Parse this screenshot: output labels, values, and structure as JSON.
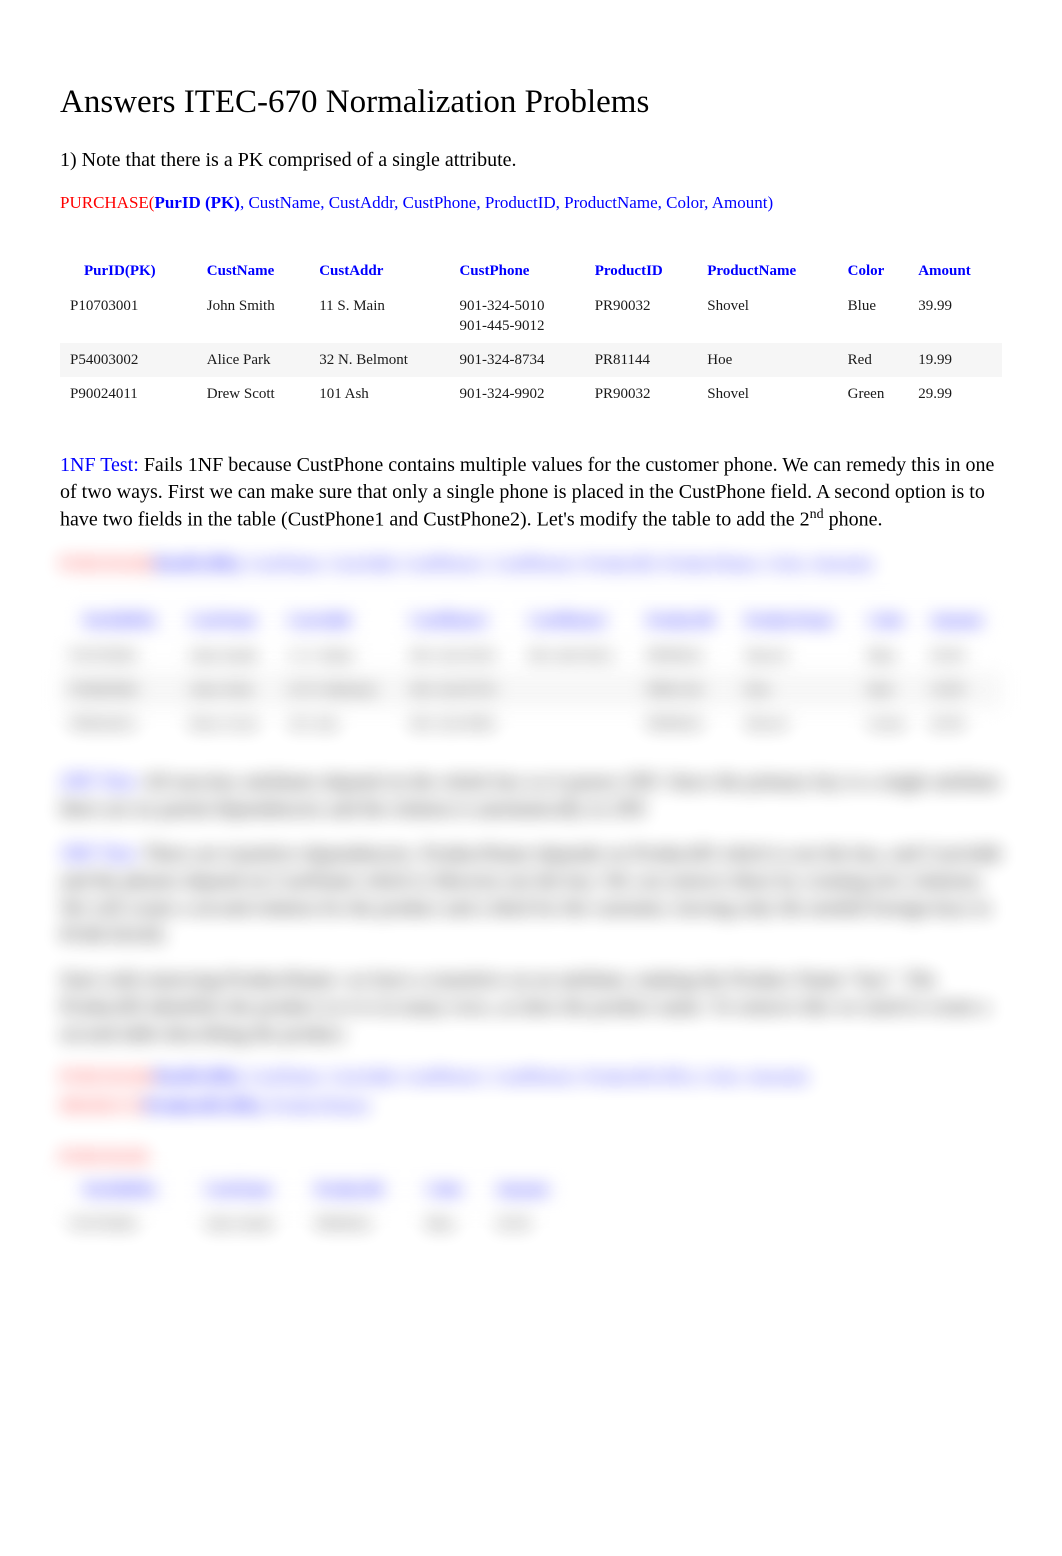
{
  "title": "Answers ITEC-670 Normalization Problems",
  "q1_note": "1) Note that there is a PK comprised of a single attribute.",
  "schema1": {
    "rel": "PURCHASE(",
    "pk": "PurID (PK)",
    "rest": ", CustName, CustAddr, CustPhone, ProductID, ProductName, Color, Amount)"
  },
  "table1": {
    "columns": [
      "PurID(PK)",
      "CustName",
      "CustAddr",
      "CustPhone",
      "ProductID",
      "ProductName",
      "Color",
      "Amount"
    ],
    "red_cols": [
      6,
      7
    ],
    "rows": [
      [
        "P10703001",
        "John Smith",
        "11 S. Main",
        "901-324-5010\n901-445-9012",
        "PR90032",
        "Shovel",
        "Blue",
        "39.99"
      ],
      [
        "P54003002",
        "Alice Park",
        "32 N. Belmont",
        "901-324-8734",
        "PR81144",
        "Hoe",
        "Red",
        "19.99"
      ],
      [
        "P90024011",
        "Drew Scott",
        "101 Ash",
        "901-324-9902",
        "PR90032",
        "Shovel",
        "Green",
        "29.99"
      ]
    ],
    "alt_rows": [
      1
    ]
  },
  "nf1_label": "1NF Test:",
  "nf1_text": " Fails 1NF because CustPhone contains multiple values for the customer phone. We can remedy this in one of two ways. First we can make sure that only a single phone is placed in the CustPhone field. A second option is to have two fields in the table (CustPhone1 and CustPhone2). Let's modify the table to add the 2",
  "nf1_sup": "nd",
  "nf1_tail": " phone.",
  "blurred": {
    "schema2": {
      "rel": "PURCHASE(",
      "pk": "PurID (PK)",
      "rest": ", CustName, CustAddr, CustPhone1, CustPhone2, ProductID, ProductName, Color, Amount)"
    },
    "table2": {
      "columns": [
        "PurID(PK)",
        "CustName",
        "CustAddr",
        "CustPhone1",
        "CustPhone2",
        "ProductID",
        "ProductName",
        "Color",
        "Amount"
      ],
      "red_cols": [
        7,
        8
      ],
      "rows": [
        [
          "P10703001",
          "John Smith",
          "11 S. Main",
          "901-324-5010",
          "901-445-9012",
          "PR90032",
          "Shovel",
          "Blue",
          "39.99"
        ],
        [
          "P54003002",
          "Alice Park",
          "32 N. Belmont",
          "901-324-8734",
          "",
          "PR81144",
          "Hoe",
          "Red",
          "19.99"
        ],
        [
          "P90024011",
          "Drew Scott",
          "101 Ash",
          "901-324-9902",
          "",
          "PR90032",
          "Shovel",
          "Green",
          "29.99"
        ]
      ],
      "alt_rows": [
        1
      ]
    },
    "para2a_label": "2NF Test:",
    "para2a": " All non-key attributes depend on the whole key so it passes 2NF. Since the primary key is a single attribute there are no partial dependencies and the relation is automatically in 2NF.",
    "para2b_label": "3NF Test:",
    "para2b": " There are transitive dependencies. ProductName depends on ProductID which is not the key, and CustAddr and the phones depend on CustName which is likewise not the key. We can remove these by creating new relations. We will create a second relation for the product and a third for the customer, leaving only the needed foreign keys in PURCHASE.",
    "para3": "Start with removing ProductName: we have a transitive on an attribute, making the Product Name \"key\". The ProductID identifies the product so it is in many rows, as does the product name. To remove this we need to create a second table describing the product.",
    "schema3a": {
      "rel": "PURCHASE(",
      "pk": "PurID (PK)",
      "rest": ", CustName, CustAddr, CustPhone1, CustPhone2, ProductID (FK), Color, Amount)"
    },
    "schema3b": {
      "rel": "PRODUCT(",
      "pk": "ProductID (PK)",
      "rest": ", ProductName)"
    },
    "small_label": "PURCHASE",
    "table3": {
      "columns": [
        "PurID(PK)",
        "CustName",
        "ProductID",
        "Color",
        "Amount"
      ],
      "rows": [
        [
          "P10703001",
          "John Smith",
          "PR90032",
          "Blue",
          "39.99"
        ]
      ]
    }
  }
}
